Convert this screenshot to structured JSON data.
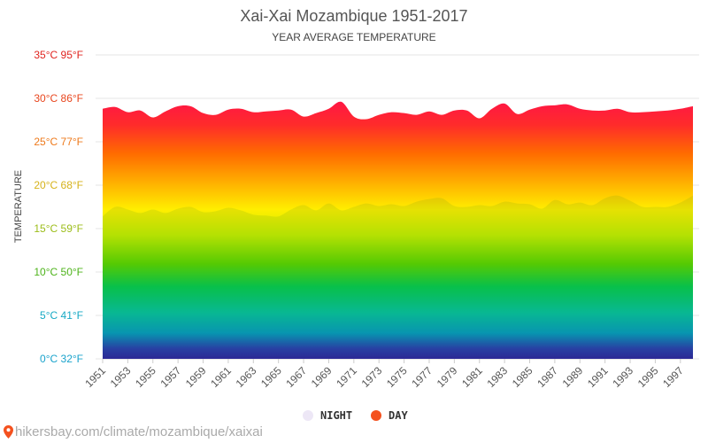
{
  "chart_data": {
    "type": "area",
    "title": "Xai-Xai Mozambique 1951-2017",
    "subtitle": "YEAR AVERAGE TEMPERATURE",
    "ylabel": "TEMPERATURE",
    "ylim": [
      0,
      35
    ],
    "xlim": [
      1951,
      1998
    ],
    "grid": true,
    "legend_position": "bottom-center",
    "yticks": [
      {
        "value": 0,
        "label": "0°C 32°F",
        "color": "#1aa3cc"
      },
      {
        "value": 5,
        "label": "5°C 41°F",
        "color": "#17a9c4"
      },
      {
        "value": 10,
        "label": "10°C 50°F",
        "color": "#4db31a"
      },
      {
        "value": 15,
        "label": "15°C 59°F",
        "color": "#9cbd1a"
      },
      {
        "value": 20,
        "label": "20°C 68°F",
        "color": "#d6b21a"
      },
      {
        "value": 25,
        "label": "25°C 77°F",
        "color": "#ee7a1c"
      },
      {
        "value": 30,
        "label": "30°C 86°F",
        "color": "#e8461e"
      },
      {
        "value": 35,
        "label": "35°C 95°F",
        "color": "#e0241f"
      }
    ],
    "xticks": [
      "1951",
      "1953",
      "1955",
      "1957",
      "1959",
      "1961",
      "1963",
      "1965",
      "1967",
      "1969",
      "1971",
      "1973",
      "1975",
      "1977",
      "1979",
      "1981",
      "1983",
      "1985",
      "1987",
      "1989",
      "1991",
      "1993",
      "1995",
      "1997"
    ],
    "x": [
      1951,
      1952,
      1953,
      1954,
      1955,
      1956,
      1957,
      1958,
      1959,
      1960,
      1961,
      1962,
      1963,
      1964,
      1965,
      1966,
      1967,
      1968,
      1969,
      1970,
      1971,
      1972,
      1973,
      1974,
      1975,
      1976,
      1977,
      1978,
      1979,
      1980,
      1981,
      1982,
      1983,
      1984,
      1985,
      1986,
      1987,
      1988,
      1989,
      1990,
      1991,
      1992,
      1993,
      1994,
      1995,
      1996,
      1997,
      1998
    ],
    "series": [
      {
        "name": "DAY",
        "color": "#f4511e",
        "values": [
          28.8,
          29.0,
          28.4,
          28.6,
          27.8,
          28.5,
          29.1,
          29.1,
          28.3,
          28.1,
          28.7,
          28.8,
          28.4,
          28.5,
          28.6,
          28.7,
          27.9,
          28.3,
          28.8,
          29.6,
          27.9,
          27.6,
          28.1,
          28.4,
          28.3,
          28.1,
          28.5,
          28.1,
          28.6,
          28.6,
          27.7,
          28.8,
          29.4,
          28.2,
          28.7,
          29.1,
          29.2,
          29.3,
          28.8,
          28.6,
          28.6,
          28.8,
          28.4,
          28.4,
          28.5,
          28.6,
          28.8,
          29.1
        ]
      },
      {
        "name": "NIGHT",
        "color": "#ede7f6",
        "values": [
          16.4,
          17.5,
          17.2,
          16.8,
          17.2,
          16.8,
          17.3,
          17.5,
          16.9,
          17.0,
          17.4,
          17.1,
          16.6,
          16.5,
          16.4,
          17.2,
          17.7,
          17.1,
          17.9,
          17.1,
          17.5,
          17.9,
          17.6,
          17.8,
          17.6,
          18.1,
          18.4,
          18.5,
          17.6,
          17.5,
          17.7,
          17.6,
          18.1,
          17.9,
          17.8,
          17.3,
          18.3,
          17.8,
          18.0,
          17.7,
          18.5,
          18.8,
          18.2,
          17.5,
          17.5,
          17.5,
          18.0,
          18.8
        ]
      }
    ]
  },
  "legend": {
    "night_label": "NIGHT",
    "day_label": "DAY",
    "night_color": "#ede7f6",
    "day_color": "#f4511e"
  },
  "source": {
    "icon": "map-pin-icon",
    "text": "hikersbay.com/climate/mozambique/xaixai"
  }
}
